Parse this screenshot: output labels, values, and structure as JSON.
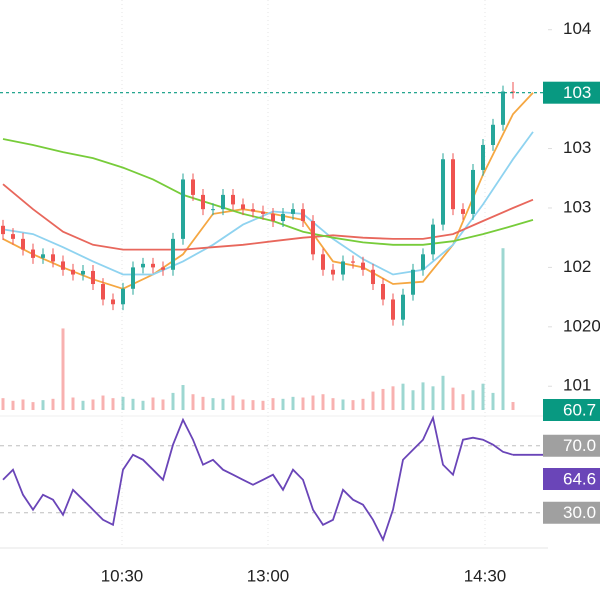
{
  "chart_data": {
    "type": "candlestick",
    "up_color": "#26a69a",
    "down_color": "#ef5350",
    "xlim": [
      -0.3,
      53.7
    ],
    "xticks": [
      {
        "value": 11.9,
        "label": "10:30"
      },
      {
        "value": 26.5,
        "label": "13:00"
      },
      {
        "value": 48.2,
        "label": "14:30"
      }
    ],
    "ylim": [
      1013.0,
      1047.5
    ],
    "yticks": [
      {
        "value": 1045,
        "label": "104"
      },
      {
        "value": 1035,
        "label": "103"
      },
      {
        "value": 1030,
        "label": "103"
      },
      {
        "value": 1025,
        "label": "102"
      },
      1020,
      {
        "value": 1015,
        "label": "101"
      }
    ],
    "open": [
      1028.5,
      1027.8,
      1027.4,
      1026.5,
      1025.8,
      1026.1,
      1025.5,
      1024.8,
      1024.4,
      1024.7,
      1023.6,
      1022.3,
      1021.9,
      1023.2,
      1025.0,
      1025.3,
      1025.0,
      1024.8,
      1027.4,
      1032.4,
      1031.1,
      1029.9,
      1029.9,
      1031.1,
      1030.3,
      1029.9,
      1029.7,
      1029.5,
      1028.9,
      1029.5,
      1029.9,
      1028.9,
      1026.1,
      1024.8,
      1024.4,
      1025.5,
      1025.4,
      1024.8,
      1023.6,
      1022.3,
      1020.6,
      1022.7,
      1024.8,
      1026.1,
      1028.6,
      1034.1,
      1029.9,
      1029.5,
      1033.2,
      1035.3,
      1037.0,
      1039.8
    ],
    "high": [
      1029.0,
      1028.3,
      1027.9,
      1027.0,
      1026.6,
      1026.6,
      1026.0,
      1025.3,
      1025.2,
      1025.2,
      1024.1,
      1022.8,
      1023.7,
      1025.5,
      1025.8,
      1025.8,
      1025.5,
      1027.9,
      1032.9,
      1032.9,
      1031.6,
      1030.4,
      1031.6,
      1031.6,
      1030.8,
      1030.4,
      1030.2,
      1030.0,
      1030.0,
      1030.4,
      1030.4,
      1029.4,
      1026.6,
      1025.3,
      1026.0,
      1026.0,
      1025.9,
      1025.3,
      1024.1,
      1022.8,
      1023.2,
      1025.3,
      1026.6,
      1029.1,
      1034.6,
      1034.6,
      1030.4,
      1033.7,
      1035.8,
      1037.5,
      1040.3,
      1040.6
    ],
    "low": [
      1027.3,
      1026.9,
      1026.0,
      1025.3,
      1025.3,
      1025.0,
      1024.3,
      1023.9,
      1023.9,
      1023.1,
      1021.8,
      1021.4,
      1021.4,
      1022.7,
      1024.5,
      1024.5,
      1024.3,
      1024.3,
      1026.9,
      1030.6,
      1029.4,
      1029.4,
      1029.4,
      1029.8,
      1029.4,
      1029.2,
      1029.0,
      1028.4,
      1028.4,
      1029.0,
      1028.4,
      1025.6,
      1024.3,
      1023.9,
      1023.9,
      1024.9,
      1024.3,
      1023.1,
      1021.8,
      1020.1,
      1020.1,
      1022.2,
      1024.3,
      1025.6,
      1028.1,
      1029.4,
      1029.0,
      1029.0,
      1032.7,
      1034.8,
      1036.5,
      1039.2
    ],
    "close": [
      1027.8,
      1027.4,
      1026.5,
      1025.8,
      1026.1,
      1025.5,
      1024.8,
      1024.4,
      1024.7,
      1023.6,
      1022.3,
      1021.9,
      1023.2,
      1025.0,
      1025.3,
      1025.0,
      1024.8,
      1027.4,
      1032.4,
      1031.1,
      1029.9,
      1029.9,
      1031.1,
      1030.3,
      1029.9,
      1029.7,
      1029.5,
      1028.9,
      1029.5,
      1029.9,
      1028.9,
      1026.1,
      1024.8,
      1024.4,
      1025.5,
      1025.4,
      1024.8,
      1023.6,
      1022.3,
      1020.6,
      1022.7,
      1024.8,
      1026.1,
      1028.6,
      1034.1,
      1029.9,
      1029.5,
      1033.2,
      1035.3,
      1037.0,
      1039.8,
      1039.7
    ],
    "ma_x": [
      0,
      3,
      6,
      9,
      12,
      15,
      18,
      21,
      24,
      27,
      30,
      33,
      36,
      39,
      42,
      45,
      48,
      51,
      53
    ],
    "moving_averages": [
      {
        "color": "#f5a742",
        "values": [
          1027.4,
          1026.1,
          1025.0,
          1024.0,
          1023.2,
          1024.4,
          1026.1,
          1029.5,
          1029.9,
          1029.5,
          1029.0,
          1025.5,
          1025.0,
          1023.6,
          1023.8,
          1026.9,
          1032.8,
          1037.9,
          1039.7
        ]
      },
      {
        "color": "#8fd3f0",
        "values": [
          1028.2,
          1027.8,
          1026.7,
          1025.5,
          1024.4,
          1024.4,
          1025.5,
          1026.9,
          1028.6,
          1029.7,
          1029.5,
          1027.4,
          1025.7,
          1024.4,
          1024.8,
          1026.9,
          1030.3,
          1034.1,
          1036.4
        ]
      },
      {
        "color": "#e8675c",
        "values": [
          1032.0,
          1029.9,
          1028.0,
          1026.9,
          1026.5,
          1026.5,
          1026.5,
          1026.7,
          1026.9,
          1027.2,
          1027.5,
          1027.7,
          1027.5,
          1027.4,
          1027.4,
          1027.8,
          1028.9,
          1030.0,
          1030.7
        ]
      },
      {
        "color": "#77cc3a",
        "values": [
          1035.8,
          1035.3,
          1034.7,
          1034.2,
          1033.4,
          1032.4,
          1031.1,
          1030.3,
          1029.5,
          1028.9,
          1028.0,
          1027.5,
          1027.1,
          1026.9,
          1026.9,
          1027.2,
          1027.8,
          1028.5,
          1029.0
        ]
      }
    ],
    "price_tag": {
      "value": 1039.7,
      "label": "103"
    },
    "price_tag_color": "#089981",
    "volume_lim": [
      0,
      1300
    ],
    "volume": [
      90,
      70,
      80,
      60,
      75,
      85,
      620,
      95,
      70,
      80,
      110,
      90,
      100,
      85,
      70,
      95,
      80,
      130,
      190,
      120,
      100,
      90,
      85,
      110,
      80,
      75,
      70,
      90,
      85,
      100,
      95,
      110,
      120,
      90,
      80,
      75,
      85,
      140,
      160,
      180,
      200,
      150,
      210,
      180,
      260,
      170,
      120,
      150,
      200,
      130,
      1230,
      60.7
    ],
    "rsi_lim": [
      0,
      100
    ],
    "rsi_color": "#6a45b8",
    "rsi": [
      49.7,
      55.7,
      40.7,
      31.8,
      40.7,
      37.8,
      28.8,
      43.7,
      37.8,
      31.8,
      25.8,
      22.8,
      55.7,
      64.6,
      61.6,
      55.7,
      49.7,
      70.6,
      85.5,
      73.6,
      58.7,
      61.6,
      55.7,
      52.7,
      49.7,
      46.7,
      49.7,
      52.7,
      43.7,
      55.7,
      49.7,
      31.8,
      22.8,
      25.8,
      43.7,
      37.8,
      34.8,
      25.8,
      13.9,
      31.8,
      61.6,
      67.6,
      73.6,
      86.7,
      58.7,
      52.7,
      73.6,
      74.8,
      73.6,
      70.6,
      66.4,
      64.6
    ],
    "rsi_levels": [
      {
        "value": 70,
        "label": "70.0"
      },
      {
        "value": 30,
        "label": "30.0"
      }
    ]
  }
}
